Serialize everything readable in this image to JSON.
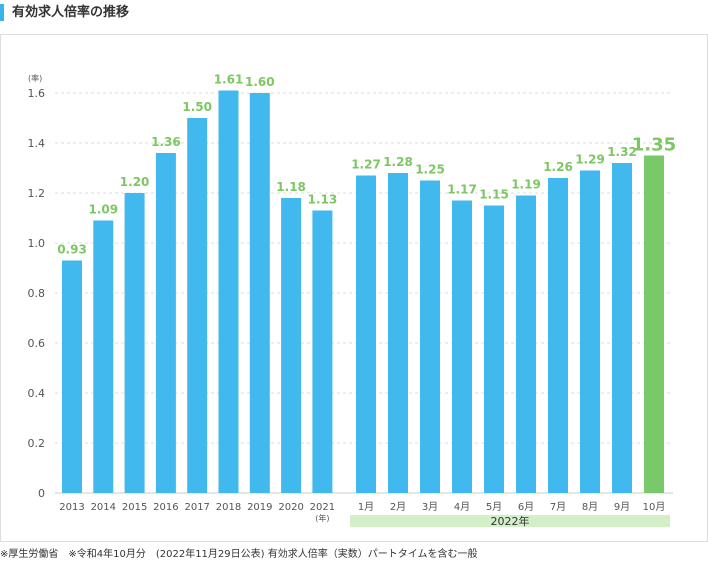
{
  "page": {
    "title": "有効求人倍率の推移",
    "footnote": "※厚生労働省　※令和4年10月分　(2022年11月29日公表) 有効求人倍率（実数）パートタイムを含む一般"
  },
  "chart_data": {
    "type": "bar",
    "title": "有効求人倍率の推移",
    "y_unit_label": "(率)",
    "ylim": [
      0,
      1.6
    ],
    "yticks": [
      "0",
      "0.2",
      "0.4",
      "0.6",
      "0.8",
      "1.0",
      "1.2",
      "1.4",
      "1.6"
    ],
    "grid": true,
    "colors": {
      "bar": "#42b9ee",
      "highlight": "#79c96a",
      "label": "#7cc763",
      "band": "#d2efc8"
    },
    "annual": {
      "categories": [
        "2013",
        "2014",
        "2015",
        "2016",
        "2017",
        "2018",
        "2019",
        "2020",
        "2021"
      ],
      "values": [
        0.93,
        1.09,
        1.2,
        1.36,
        1.5,
        1.61,
        1.6,
        1.18,
        1.13
      ],
      "labels": [
        "0.93",
        "1.09",
        "1.20",
        "1.36",
        "1.50",
        "1.61",
        "1.60",
        "1.18",
        "1.13"
      ],
      "x_unit_label": "(年)"
    },
    "monthly": {
      "categories": [
        "1月",
        "2月",
        "3月",
        "4月",
        "5月",
        "6月",
        "7月",
        "8月",
        "9月",
        "10月"
      ],
      "values": [
        1.27,
        1.28,
        1.25,
        1.17,
        1.15,
        1.19,
        1.26,
        1.29,
        1.32,
        1.35
      ],
      "labels": [
        "1.27",
        "1.28",
        "1.25",
        "1.17",
        "1.15",
        "1.19",
        "1.26",
        "1.29",
        "1.32",
        "1.35"
      ],
      "group_label": "2022年",
      "highlight_index": 9
    }
  }
}
